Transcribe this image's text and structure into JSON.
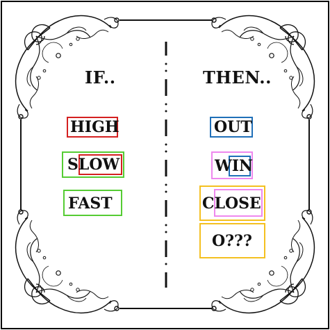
{
  "left_column": {
    "heading": "IF..",
    "words": [
      "HIGH",
      "SLOW",
      "FAST"
    ]
  },
  "right_column": {
    "heading": "THEN..",
    "words": [
      "OUT",
      "WIN",
      "CLOSE",
      "O???"
    ]
  },
  "colors": {
    "red": "#d42020",
    "green": "#55cc33",
    "blue": "#1f6fb8",
    "pink": "#ee88ee",
    "yellow": "#f4c020"
  }
}
